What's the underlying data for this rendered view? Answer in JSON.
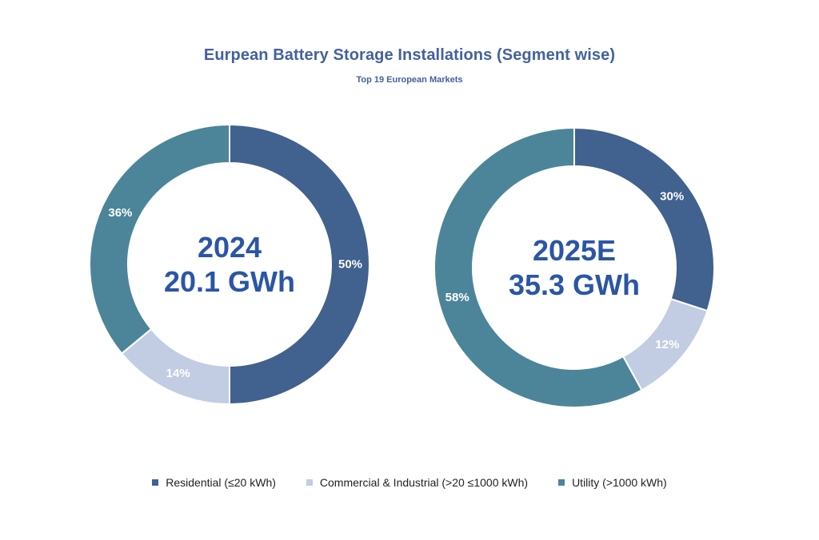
{
  "header": {
    "title": "Eurpean Battery Storage Installations (Segment wise)",
    "subtitle": "Top 19 European Markets"
  },
  "colors": {
    "title_text": "#44619E",
    "center_text": "#2B55A5",
    "label_text": "#FFFFFF",
    "legend_text": "#212121",
    "residential": "#41618E",
    "commercial_industrial": "#C2CDE3",
    "utility": "#4C8599"
  },
  "legend": {
    "items": [
      {
        "label": "Residential (≤20 kWh)",
        "color": "#41618E"
      },
      {
        "label": "Commercial & Industrial (>20 ≤1000 kWh)",
        "color": "#C2CDE3"
      },
      {
        "label": "Utility (>1000 kWh)",
        "color": "#4C8599"
      }
    ]
  },
  "chart_data": [
    {
      "type": "pie",
      "subtype": "donut",
      "center_title": "2024",
      "center_value": "20.1 GWh",
      "categories": [
        "Residential (≤20 kWh)",
        "Commercial & Industrial (>20 ≤1000 kWh)",
        "Utility (>1000 kWh)"
      ],
      "values": [
        50,
        14,
        36
      ],
      "data_labels": [
        "50%",
        "14%",
        "36%"
      ],
      "unit": "%",
      "start_angle_deg": 0,
      "direction": "clockwise",
      "legend_position": "bottom"
    },
    {
      "type": "pie",
      "subtype": "donut",
      "center_title": "2025E",
      "center_value": "35.3 GWh",
      "categories": [
        "Residential (≤20 kWh)",
        "Commercial & Industrial (>20 ≤1000 kWh)",
        "Utility (>1000 kWh)"
      ],
      "values": [
        30,
        12,
        58
      ],
      "data_labels": [
        "30%",
        "12%",
        "58%"
      ],
      "unit": "%",
      "start_angle_deg": 0,
      "direction": "clockwise",
      "legend_position": "bottom"
    }
  ]
}
